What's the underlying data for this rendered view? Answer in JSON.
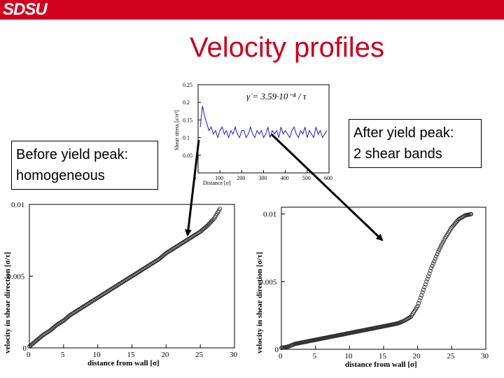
{
  "header": {
    "logo_text": "SDSU",
    "bar_color": "#d0001e"
  },
  "slide": {
    "title": "Velocity profiles",
    "title_color": "#c8001e",
    "before_label": [
      "Before yield peak:",
      "homogeneous"
    ],
    "after_label": [
      "After yield peak:",
      "2 shear bands"
    ]
  },
  "chart_data": [
    {
      "type": "line",
      "xlabel": "Distance [σ]",
      "ylabel": "Shear stress [ε/σ³]",
      "annotation": "γ̇ = 3.59·10⁻⁴ / τ",
      "xlim": [
        0,
        600
      ],
      "ylim": [
        0,
        0.25
      ],
      "x_ticks": [
        "0",
        "100",
        "200",
        "300",
        "400",
        "500",
        "600"
      ],
      "y_ticks": [
        "0.25",
        "0.2",
        "0.15",
        "0.1",
        "0.05"
      ],
      "series": [
        {
          "color": "#1a1acc",
          "x": [
            10,
            20,
            30,
            40,
            50,
            60,
            70,
            80,
            90,
            100,
            110,
            120,
            130,
            140,
            150,
            160,
            170,
            180,
            190,
            200,
            210,
            220,
            230,
            240,
            250,
            260,
            270,
            280,
            290,
            300,
            310,
            320,
            330,
            340,
            350,
            360,
            370,
            380,
            390,
            400,
            410,
            420,
            430,
            440,
            450,
            460,
            470,
            480,
            490,
            500,
            510,
            520,
            530,
            540,
            550,
            560,
            570,
            580,
            590
          ],
          "y": [
            0.13,
            0.19,
            0.16,
            0.14,
            0.12,
            0.13,
            0.11,
            0.12,
            0.1,
            0.12,
            0.13,
            0.11,
            0.12,
            0.1,
            0.12,
            0.11,
            0.13,
            0.11,
            0.1,
            0.12,
            0.12,
            0.1,
            0.11,
            0.13,
            0.11,
            0.1,
            0.12,
            0.11,
            0.12,
            0.1,
            0.11,
            0.13,
            0.1,
            0.12,
            0.11,
            0.12,
            0.1,
            0.13,
            0.11,
            0.12,
            0.11,
            0.1,
            0.12,
            0.13,
            0.11,
            0.1,
            0.12,
            0.11,
            0.13,
            0.1,
            0.12,
            0.11,
            0.1,
            0.13,
            0.11,
            0.12,
            0.1,
            0.11,
            0.12
          ]
        }
      ]
    },
    {
      "type": "scatter",
      "xlabel": "distance from wall [σ]",
      "ylabel": "velocity in shear direction [σ/τ]",
      "xlim": [
        0,
        30
      ],
      "ylim": [
        0,
        0.01
      ],
      "x_ticks": [
        "0",
        "5",
        "10",
        "15",
        "20",
        "25",
        "30"
      ],
      "y_ticks": [
        "0",
        "0.005",
        "0.01"
      ],
      "series": [
        {
          "x": [
            0,
            1,
            2,
            3,
            4,
            5,
            6,
            7,
            8,
            9,
            10,
            11,
            12,
            13,
            14,
            15,
            16,
            17,
            18,
            19,
            20,
            21,
            22,
            23,
            24,
            25,
            26,
            27,
            28
          ],
          "y": [
            0.0001,
            0.0005,
            0.0009,
            0.0012,
            0.0016,
            0.0019,
            0.0023,
            0.0026,
            0.0029,
            0.0032,
            0.0035,
            0.0038,
            0.0041,
            0.0044,
            0.0047,
            0.005,
            0.0053,
            0.0056,
            0.0059,
            0.0062,
            0.0066,
            0.0069,
            0.0072,
            0.0075,
            0.0078,
            0.0081,
            0.0085,
            0.009,
            0.0098
          ]
        }
      ]
    },
    {
      "type": "scatter",
      "xlabel": "distance from wall [σ]",
      "ylabel": "velocity in shear direction [σ/τ]",
      "xlim": [
        0,
        30
      ],
      "ylim": [
        0,
        0.0105
      ],
      "x_ticks": [
        "0",
        "5",
        "10",
        "15",
        "20",
        "25",
        "30"
      ],
      "y_ticks": [
        "0",
        "0.005",
        "0.01"
      ],
      "series": [
        {
          "x": [
            0,
            1,
            2,
            3,
            4,
            5,
            6,
            7,
            8,
            9,
            10,
            11,
            12,
            13,
            14,
            15,
            16,
            17,
            18,
            19,
            20,
            21,
            22,
            23,
            24,
            25,
            26,
            27,
            28
          ],
          "y": [
            0.0001,
            0.0002,
            0.0004,
            0.0005,
            0.0006,
            0.0007,
            0.0008,
            0.0009,
            0.001,
            0.0011,
            0.0012,
            0.0013,
            0.0014,
            0.0015,
            0.0016,
            0.0017,
            0.0018,
            0.0019,
            0.0021,
            0.0024,
            0.0032,
            0.0046,
            0.006,
            0.0072,
            0.0082,
            0.009,
            0.0096,
            0.0099,
            0.01
          ]
        }
      ]
    }
  ]
}
